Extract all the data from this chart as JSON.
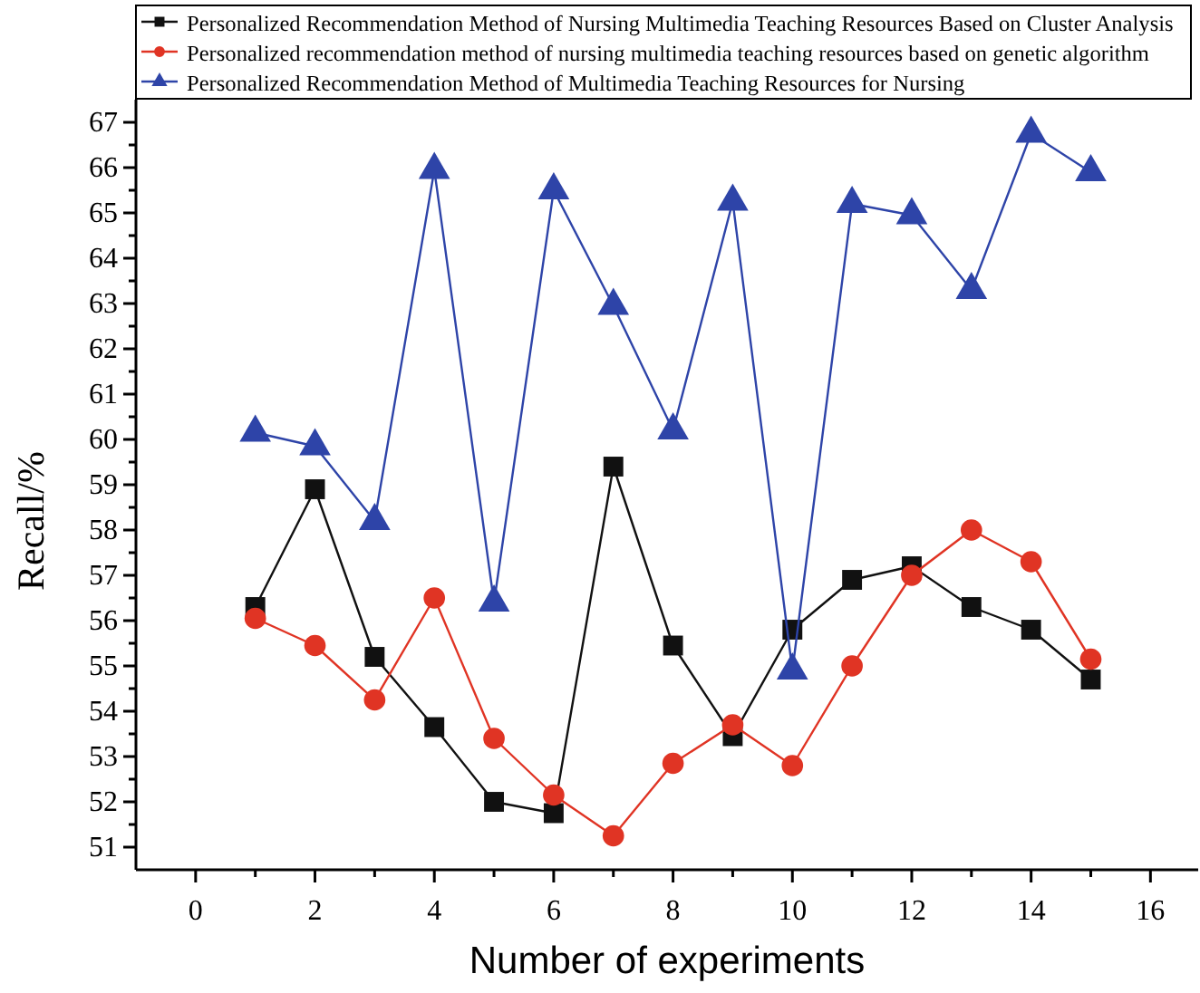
{
  "chart_data": {
    "type": "line",
    "xlabel": "Number of experiments",
    "ylabel": "Recall/%",
    "x": [
      1,
      2,
      3,
      4,
      5,
      6,
      7,
      8,
      9,
      10,
      11,
      12,
      13,
      14,
      15
    ],
    "xlim": [
      -1,
      16.8
    ],
    "xticks": [
      0,
      2,
      4,
      6,
      8,
      10,
      12,
      14,
      16
    ],
    "ylim": [
      50.5,
      67.5
    ],
    "yticks": [
      51,
      52,
      53,
      54,
      55,
      56,
      57,
      58,
      59,
      60,
      61,
      62,
      63,
      64,
      65,
      66,
      67
    ],
    "legend": "top",
    "grid": false,
    "series": [
      {
        "name": "Personalized Recommendation Method of Nursing Multimedia Teaching Resources Based on Cluster Analysis",
        "color": "#111111",
        "marker": "square",
        "values": [
          56.3,
          58.9,
          55.2,
          53.65,
          52.0,
          51.75,
          59.4,
          55.45,
          53.45,
          55.8,
          56.9,
          57.2,
          56.3,
          55.8,
          54.7
        ]
      },
      {
        "name": "Personalized recommendation method of nursing multimedia teaching resources based on genetic algorithm",
        "color": "#e03424",
        "marker": "circle",
        "values": [
          56.05,
          55.45,
          54.25,
          56.5,
          53.4,
          52.15,
          51.25,
          52.85,
          53.7,
          52.8,
          55.0,
          57.0,
          58.0,
          57.3,
          55.15
        ]
      },
      {
        "name": "Personalized Recommendation Method of Multimedia Teaching Resources for Nursing",
        "color": "#2e44a8",
        "marker": "triangle",
        "values": [
          60.15,
          59.85,
          58.2,
          65.95,
          56.4,
          65.5,
          62.95,
          60.2,
          65.25,
          54.9,
          65.2,
          64.95,
          63.3,
          66.75,
          65.9
        ]
      }
    ]
  }
}
